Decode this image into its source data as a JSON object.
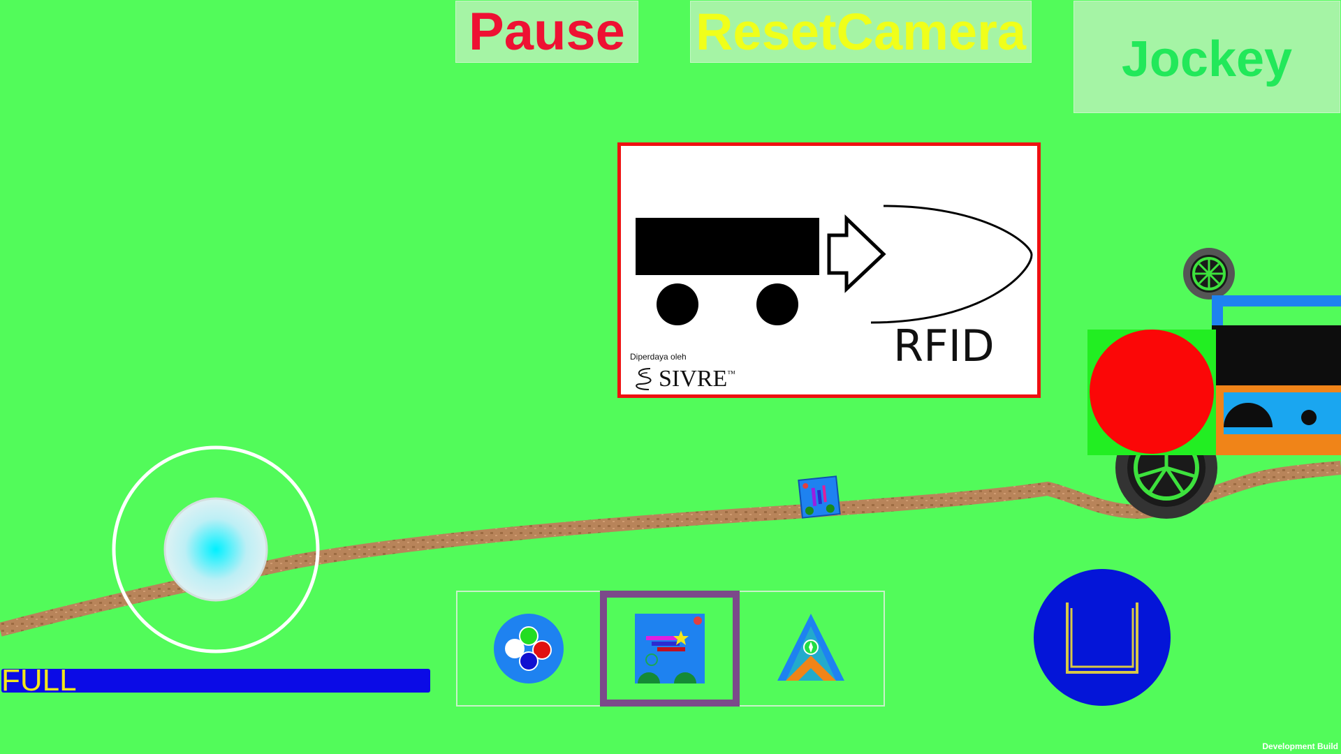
{
  "hud": {
    "pause_label": "Pause",
    "reset_camera_label": "ResetCamera",
    "jockey_label": "Jockey",
    "fuel_label": "FULL",
    "fuel_level": 1.0,
    "dev_build_label": "Development Build"
  },
  "sign": {
    "rfid_label": "RFID",
    "powered_by_label": "Diperdaya oleh",
    "brand_label": "SIVRE",
    "trademark": "™"
  },
  "hotbar": {
    "selected_index": 1,
    "slots": [
      {
        "icon": "color-wheel-icon"
      },
      {
        "icon": "map-card-icon"
      },
      {
        "icon": "tent-icon"
      }
    ]
  },
  "colors": {
    "background": "#52fb5a",
    "pause_text": "#ee1133",
    "reset_text": "#f0ff1a",
    "jockey_text": "#22e85a",
    "fuel_bar": "#0b0be6",
    "fuel_text": "#f4e61c",
    "action_button": "#0415d8",
    "hotbar_selected": "#7b4a8a",
    "road": "#b8845a"
  }
}
